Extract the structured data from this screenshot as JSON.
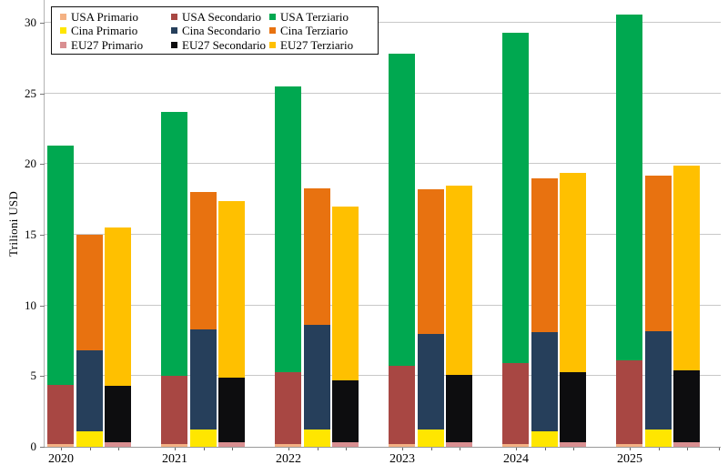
{
  "chart_data": {
    "type": "bar",
    "stacked": true,
    "title": "",
    "xlabel": "",
    "ylabel": "Trilioni USD",
    "ylim": [
      0,
      31.6
    ],
    "yticks": [
      0,
      5,
      10,
      15,
      20,
      25,
      30
    ],
    "grid": "horizontal",
    "legend_position": "top-left",
    "categories": [
      "2020",
      "2021",
      "2022",
      "2023",
      "2024",
      "2025"
    ],
    "series": [
      {
        "name": "USA Primario",
        "group": "USA",
        "color": "#F4B183",
        "values": [
          0.2,
          0.2,
          0.2,
          0.2,
          0.2,
          0.2
        ]
      },
      {
        "name": "USA Secondario",
        "group": "USA",
        "color": "#A84743",
        "values": [
          4.2,
          4.8,
          5.1,
          5.5,
          5.7,
          5.9
        ]
      },
      {
        "name": "USA Terziario",
        "group": "USA",
        "color": "#00A850",
        "values": [
          16.9,
          18.7,
          20.2,
          22.1,
          23.4,
          24.5
        ]
      },
      {
        "name": "Cina Primario",
        "group": "Cina",
        "color": "#FFE600",
        "values": [
          1.1,
          1.2,
          1.2,
          1.2,
          1.1,
          1.2
        ]
      },
      {
        "name": "Cina Secondario",
        "group": "Cina",
        "color": "#263F5B",
        "values": [
          5.7,
          7.1,
          7.4,
          6.8,
          7.0,
          7.0
        ]
      },
      {
        "name": "Cina Terziario",
        "group": "Cina",
        "color": "#E87210",
        "values": [
          8.2,
          9.7,
          9.7,
          10.2,
          10.9,
          11.0
        ]
      },
      {
        "name": "EU27 Primario",
        "group": "EU27",
        "color": "#D98F91",
        "values": [
          0.3,
          0.3,
          0.3,
          0.3,
          0.3,
          0.3
        ]
      },
      {
        "name": "EU27 Secondario",
        "group": "EU27",
        "color": "#0D0D0F",
        "values": [
          4.0,
          4.6,
          4.4,
          4.8,
          5.0,
          5.1
        ]
      },
      {
        "name": "EU27 Terziario",
        "group": "EU27",
        "color": "#FFC000",
        "values": [
          11.2,
          12.5,
          12.3,
          13.4,
          14.1,
          14.5
        ]
      }
    ],
    "group_totals": {
      "USA": [
        21.3,
        23.7,
        25.5,
        27.8,
        29.3,
        30.6
      ],
      "Cina": [
        15.0,
        18.0,
        18.3,
        18.2,
        19.0,
        19.2
      ],
      "EU27": [
        15.5,
        17.4,
        17.0,
        18.5,
        19.4,
        19.9
      ]
    }
  }
}
